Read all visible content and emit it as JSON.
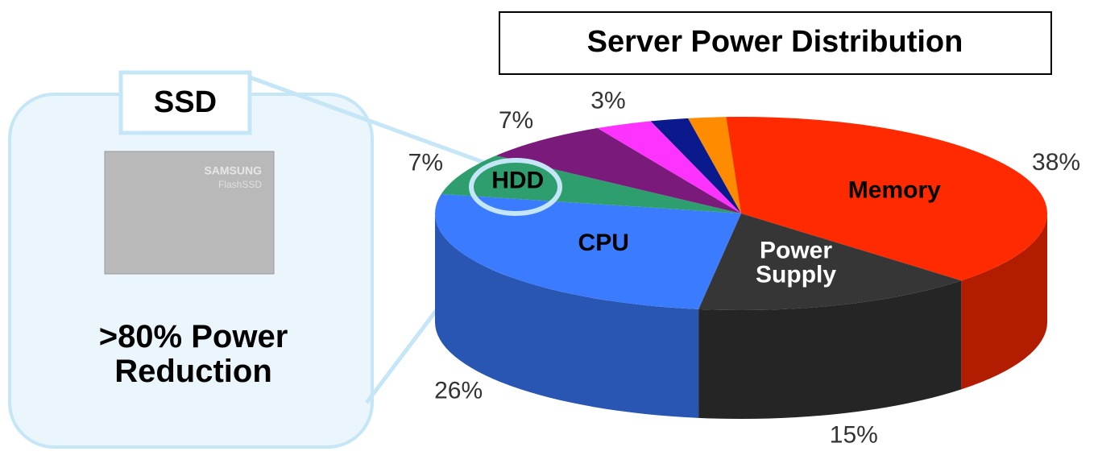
{
  "chart_data": {
    "type": "pie",
    "title": "Server Power Distribution",
    "categories": [
      null,
      "Memory",
      "Power Supply",
      "CPU",
      "HDD",
      null,
      null,
      null
    ],
    "values": [
      2,
      38,
      15,
      26,
      7,
      7,
      3,
      2
    ],
    "value_labels": [
      null,
      "38%",
      "15%",
      "26%",
      "7%",
      "7%",
      "3%",
      null
    ],
    "colors": [
      "#ff8c00",
      "#ff2a00",
      "#363636",
      "#3a7bff",
      "#2e9e6e",
      "#7a1a7a",
      "#ff33ff",
      "#0a1a8c"
    ]
  },
  "callout": {
    "title": "SSD",
    "caption": ">80% Power Reduction",
    "device_brand": "SAMSUNG",
    "device_model": "FlashSSD"
  }
}
